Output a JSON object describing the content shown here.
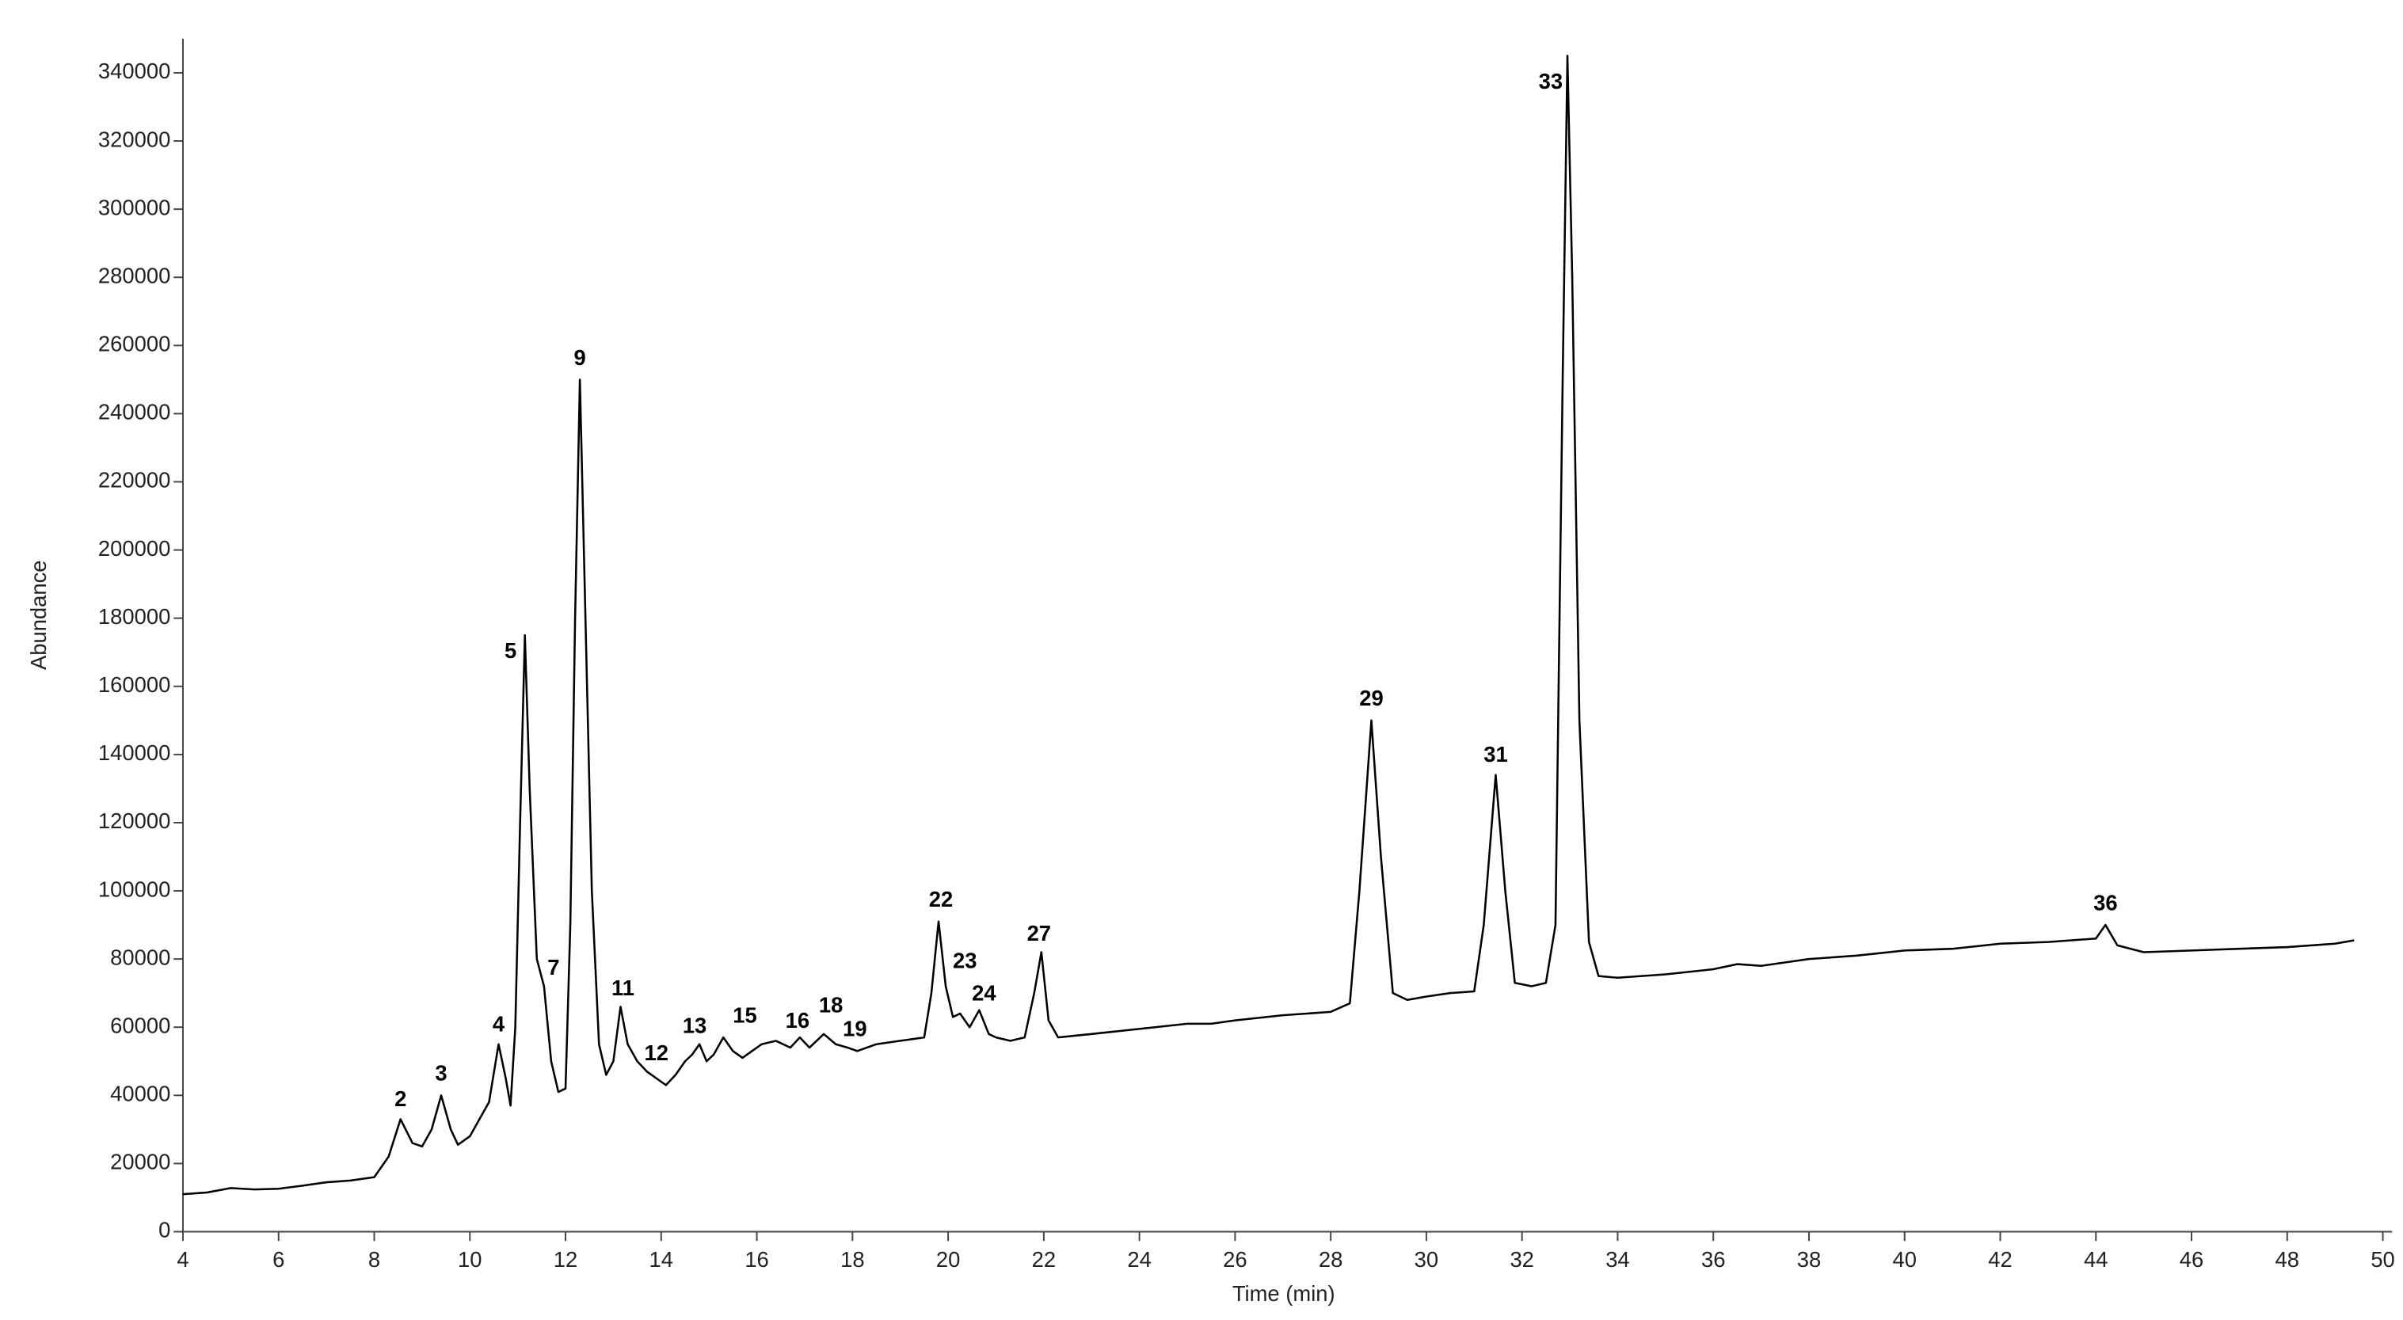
{
  "chart_data": {
    "type": "line",
    "xlabel": "Time (min)",
    "ylabel": "Abundance",
    "xlim": [
      4,
      50
    ],
    "ylim": [
      0,
      350000
    ],
    "xticks": [
      4,
      6,
      8,
      10,
      12,
      14,
      16,
      18,
      20,
      22,
      24,
      26,
      28,
      30,
      32,
      34,
      36,
      38,
      40,
      42,
      44,
      46,
      48,
      50
    ],
    "yticks": [
      0,
      20000,
      40000,
      60000,
      80000,
      100000,
      120000,
      140000,
      160000,
      180000,
      200000,
      220000,
      240000,
      260000,
      280000,
      300000,
      320000,
      340000
    ],
    "color": "#000000",
    "x": [
      4,
      4.5,
      5,
      5.5,
      6,
      6.5,
      7,
      7.5,
      8,
      8.3,
      8.55,
      8.8,
      9.0,
      9.2,
      9.4,
      9.6,
      9.75,
      10.0,
      10.2,
      10.4,
      10.6,
      10.75,
      10.85,
      10.95,
      11.05,
      11.15,
      11.25,
      11.4,
      11.55,
      11.7,
      11.85,
      12.0,
      12.1,
      12.2,
      12.3,
      12.4,
      12.55,
      12.7,
      12.85,
      13.0,
      13.15,
      13.3,
      13.5,
      13.7,
      13.9,
      14.1,
      14.3,
      14.5,
      14.65,
      14.8,
      14.95,
      15.1,
      15.3,
      15.5,
      15.7,
      15.9,
      16.1,
      16.4,
      16.7,
      16.9,
      17.1,
      17.4,
      17.65,
      17.9,
      18.1,
      18.5,
      19.0,
      19.5,
      19.65,
      19.8,
      19.95,
      20.1,
      20.25,
      20.45,
      20.65,
      20.85,
      21.0,
      21.3,
      21.6,
      21.8,
      21.95,
      22.1,
      22.3,
      23,
      24,
      25,
      25.5,
      26,
      27,
      28,
      28.4,
      28.6,
      28.85,
      29.05,
      29.3,
      29.6,
      30,
      30.5,
      31.0,
      31.2,
      31.45,
      31.65,
      31.85,
      32.2,
      32.5,
      32.7,
      32.85,
      32.95,
      33.05,
      33.2,
      33.4,
      33.6,
      34,
      35,
      36,
      36.5,
      37,
      38,
      39,
      40,
      41,
      42,
      43,
      44,
      44.2,
      44.45,
      45,
      46,
      47,
      48,
      49,
      49.4
    ],
    "values": [
      11000,
      11500,
      12800,
      12400,
      12600,
      13500,
      14500,
      15000,
      16000,
      22000,
      33000,
      26000,
      25000,
      30000,
      40000,
      30000,
      25500,
      28000,
      33000,
      38000,
      55000,
      45000,
      37000,
      60000,
      120000,
      175000,
      130000,
      80000,
      72000,
      50000,
      41000,
      42000,
      90000,
      180000,
      250000,
      190000,
      100000,
      55000,
      46000,
      50000,
      66000,
      55000,
      50000,
      47000,
      45000,
      43000,
      46000,
      50000,
      52000,
      55000,
      50000,
      52000,
      57000,
      53000,
      51000,
      53000,
      55000,
      56000,
      54000,
      57000,
      54000,
      58000,
      55000,
      54000,
      53000,
      55000,
      56000,
      57000,
      70000,
      91000,
      72000,
      63000,
      64000,
      60000,
      65000,
      58000,
      57000,
      56000,
      57000,
      70000,
      82000,
      62000,
      57000,
      58000,
      59500,
      61000,
      61000,
      62000,
      63500,
      64500,
      67000,
      100000,
      150000,
      110000,
      70000,
      68000,
      69000,
      70000,
      70500,
      90000,
      134000,
      100000,
      73000,
      72000,
      73000,
      90000,
      250000,
      345000,
      280000,
      150000,
      85000,
      75000,
      74500,
      75500,
      77000,
      78500,
      78000,
      80000,
      81000,
      82500,
      83000,
      84500,
      85000,
      86000,
      90000,
      84000,
      82000,
      82500,
      83000,
      83500,
      84500,
      85500
    ],
    "annotations": [
      {
        "text": "2",
        "x": 8.55,
        "y": 38500
      },
      {
        "text": "3",
        "x": 9.4,
        "y": 46000
      },
      {
        "text": "4",
        "x": 10.6,
        "y": 60500
      },
      {
        "text": "5",
        "x": 10.85,
        "y": 170000
      },
      {
        "text": "7",
        "x": 11.75,
        "y": 77000
      },
      {
        "text": "9",
        "x": 12.3,
        "y": 256000
      },
      {
        "text": "11",
        "x": 13.2,
        "y": 71000
      },
      {
        "text": "12",
        "x": 13.9,
        "y": 52000
      },
      {
        "text": "13",
        "x": 14.7,
        "y": 60000
      },
      {
        "text": "15",
        "x": 15.75,
        "y": 63000
      },
      {
        "text": "16",
        "x": 16.85,
        "y": 61500
      },
      {
        "text": "18",
        "x": 17.55,
        "y": 66000
      },
      {
        "text": "19",
        "x": 18.05,
        "y": 59000
      },
      {
        "text": "22",
        "x": 19.85,
        "y": 97000
      },
      {
        "text": "23",
        "x": 20.35,
        "y": 79000
      },
      {
        "text": "24",
        "x": 20.75,
        "y": 69500
      },
      {
        "text": "27",
        "x": 21.9,
        "y": 87000
      },
      {
        "text": "29",
        "x": 28.85,
        "y": 156000
      },
      {
        "text": "31",
        "x": 31.45,
        "y": 139500
      },
      {
        "text": "33",
        "x": 32.6,
        "y": 337000
      },
      {
        "text": "36",
        "x": 44.2,
        "y": 96000
      }
    ]
  }
}
